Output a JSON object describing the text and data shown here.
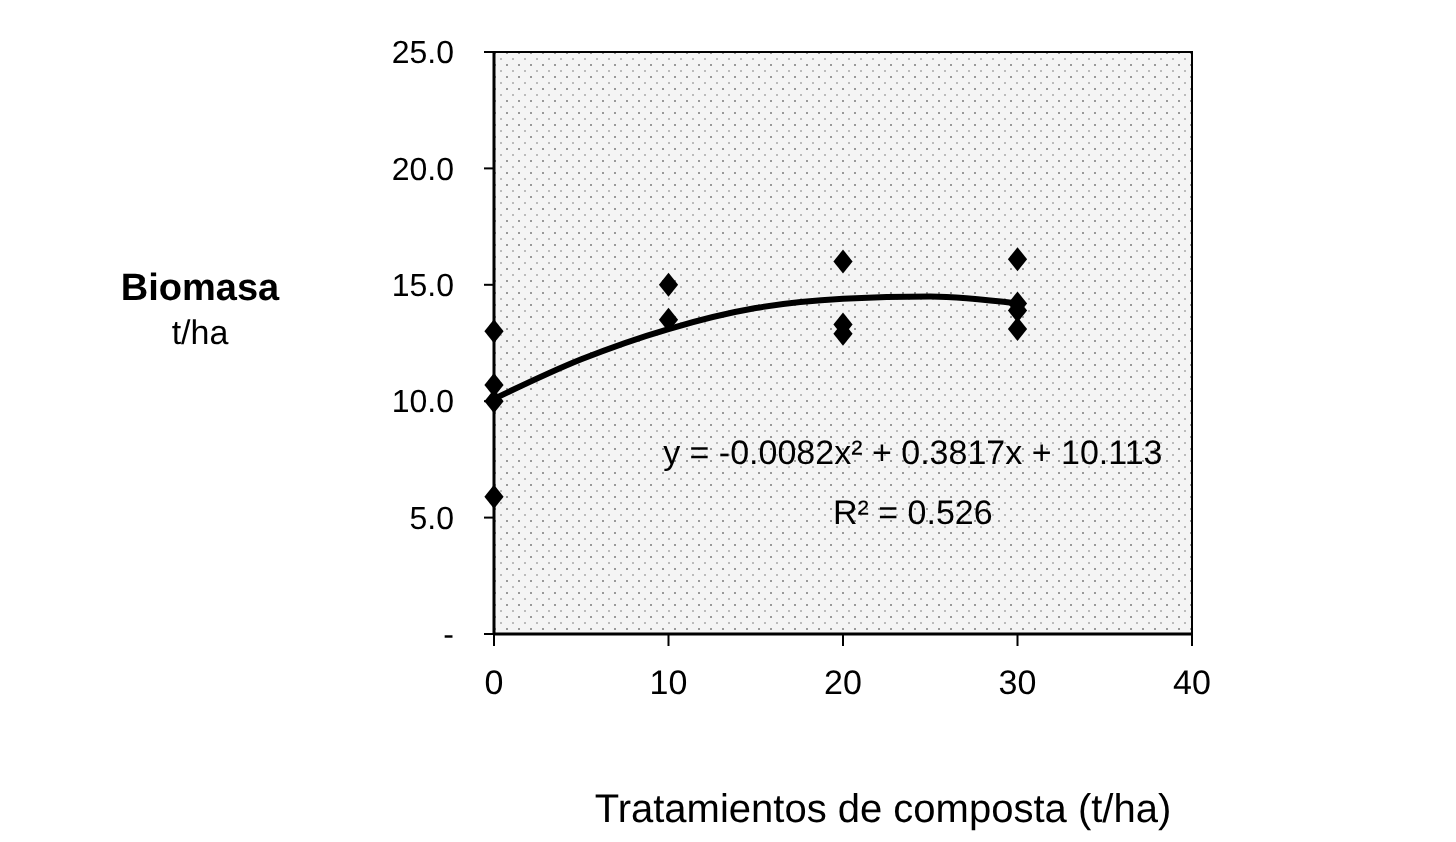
{
  "chart_data": {
    "type": "scatter",
    "xlabel": "Tratamientos de composta (t/ha)",
    "ylabel": "Biomasa\nt/ha",
    "xlim": [
      0,
      40
    ],
    "xticks": [
      0,
      10,
      20,
      30,
      40
    ],
    "ylim": [
      0,
      25
    ],
    "yticks": [
      {
        "value": 0,
        "label": "-"
      },
      {
        "value": 5,
        "label": "5.0"
      },
      {
        "value": 10,
        "label": "10.0"
      },
      {
        "value": 15,
        "label": "15.0"
      },
      {
        "value": 20,
        "label": "20.0"
      },
      {
        "value": 25,
        "label": "25.0"
      }
    ],
    "series": [
      {
        "marker": "diamond",
        "color": "#000000",
        "x": [
          0,
          0,
          0,
          0,
          10,
          10,
          20,
          20,
          20,
          30,
          30,
          30,
          30
        ],
        "values": [
          13.0,
          10.7,
          10.0,
          5.9,
          15.0,
          13.5,
          16.0,
          13.3,
          12.9,
          16.1,
          14.2,
          13.9,
          13.1
        ]
      },
      {
        "type": "line",
        "marker": "none",
        "color": "#000000",
        "x": [
          0,
          5,
          10,
          15,
          20,
          25,
          30
        ],
        "values": [
          10.1,
          11.8,
          13.1,
          14.0,
          14.4,
          14.5,
          14.2
        ]
      }
    ],
    "line_style": "solid",
    "grid": false,
    "annotations": [
      "y = -0.0082x² + 0.3817x + 10.113",
      "R² = 0.526"
    ]
  }
}
